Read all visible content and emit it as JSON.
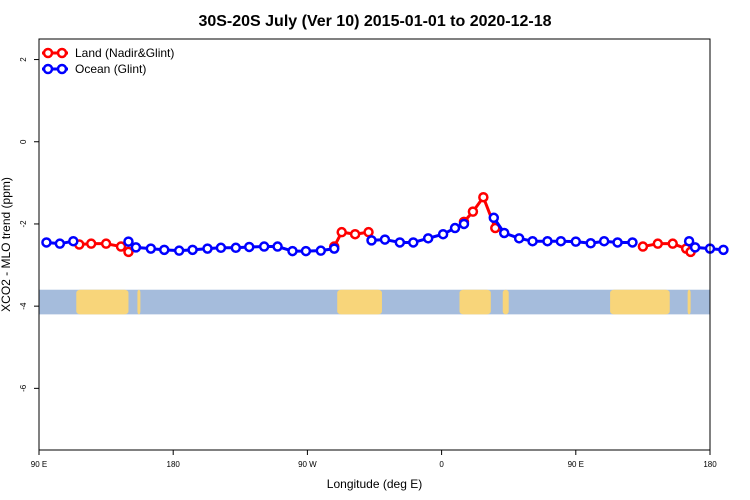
{
  "chart_data": {
    "type": "line",
    "title": "30S-20S July (Ver 10)   2015-01-01 to 2020-12-18",
    "xlabel": "Longitude (deg E)",
    "ylabel": "XCO2 - MLO trend (ppm)",
    "xlim": [
      90,
      540
    ],
    "ylim": [
      -7.5,
      2.5
    ],
    "x_ticks": [
      {
        "value": 90,
        "label": "90 E"
      },
      {
        "value": 180,
        "label": "180"
      },
      {
        "value": 270,
        "label": "90 W"
      },
      {
        "value": 360,
        "label": "0"
      },
      {
        "value": 450,
        "label": "90 E"
      },
      {
        "value": 540,
        "label": "180"
      }
    ],
    "y_ticks": [
      {
        "value": 2,
        "label": "2"
      },
      {
        "value": 0,
        "label": "0"
      },
      {
        "value": -2,
        "label": "-2"
      },
      {
        "value": -4,
        "label": "-4"
      },
      {
        "value": -6,
        "label": "-6"
      }
    ],
    "legend_position": "top-left",
    "land_strip": {
      "y_range": [
        -4.2,
        -3.6
      ],
      "ocean_color": "#a5bcdc",
      "land_color": "#f8d57a",
      "land_segments": [
        [
          115,
          150
        ],
        [
          156,
          158
        ],
        [
          290,
          320
        ],
        [
          372,
          393
        ],
        [
          401,
          405
        ],
        [
          473,
          513
        ],
        [
          525,
          527
        ]
      ]
    },
    "series": [
      {
        "name": "Land (Nadir&Glint)",
        "color": "#ff0000",
        "segments": [
          {
            "x": [
              117,
              125,
              135,
              145
            ],
            "y": [
              -2.5,
              -2.48,
              -2.48,
              -2.55
            ]
          },
          {
            "x": [
              150
            ],
            "y": [
              -2.68
            ]
          },
          {
            "x": [
              288,
              293,
              302,
              311
            ],
            "y": [
              -2.55,
              -2.2,
              -2.25,
              -2.2
            ]
          },
          {
            "x": [
              375,
              381,
              388,
              396
            ],
            "y": [
              -1.95,
              -1.7,
              -1.35,
              -2.1
            ]
          },
          {
            "x": [
              495,
              505,
              515,
              524
            ],
            "y": [
              -2.55,
              -2.48,
              -2.48,
              -2.6
            ]
          },
          {
            "x": [
              527
            ],
            "y": [
              -2.68
            ]
          }
        ]
      },
      {
        "name": "Ocean (Glint)",
        "color": "#0000ff",
        "segments": [
          {
            "x": [
              95,
              104,
              113
            ],
            "y": [
              -2.45,
              -2.48,
              -2.42
            ]
          },
          {
            "x": [
              150,
              155,
              165,
              174,
              184,
              193,
              203,
              212,
              222,
              231,
              241,
              250,
              260,
              269,
              279,
              288
            ],
            "y": [
              -2.43,
              -2.57,
              -2.6,
              -2.63,
              -2.65,
              -2.63,
              -2.6,
              -2.58,
              -2.58,
              -2.56,
              -2.55,
              -2.55,
              -2.66,
              -2.66,
              -2.65,
              -2.6
            ]
          },
          {
            "x": [
              313,
              322,
              332,
              341,
              351,
              361,
              369,
              375
            ],
            "y": [
              -2.4,
              -2.38,
              -2.45,
              -2.45,
              -2.35,
              -2.25,
              -2.1,
              -2.0
            ]
          },
          {
            "x": [
              395,
              402,
              412,
              421,
              431,
              440,
              450,
              460,
              469,
              478,
              488
            ],
            "y": [
              -1.85,
              -2.22,
              -2.35,
              -2.42,
              -2.42,
              -2.42,
              -2.43,
              -2.47,
              -2.42,
              -2.45,
              -2.45
            ]
          },
          {
            "x": [
              526,
              530,
              540,
              549
            ],
            "y": [
              -2.42,
              -2.57,
              -2.6,
              -2.63
            ]
          }
        ]
      }
    ]
  }
}
